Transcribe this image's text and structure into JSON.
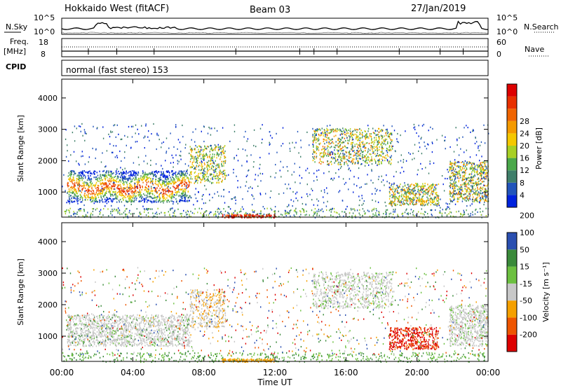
{
  "header": {
    "title": "Hokkaido West (fitACF)",
    "beam": "Beam 03",
    "date": "27/Jan/2019"
  },
  "top_panels": {
    "nsky_label": "N.Sky",
    "nsky_ticks": [
      "10^5",
      "10^0"
    ],
    "nsearch_label": "N.Search",
    "freq_label": "Freq.",
    "freq_unit": "[MHz]",
    "freq_ticks": [
      "18",
      "8"
    ],
    "nave_ticks": [
      "60",
      "0"
    ],
    "nave_label": "Nave",
    "cpid_label": "CPID",
    "cpid_text": "normal (fast stereo) 153"
  },
  "colors": {
    "power_scale": [
      "#0022dd",
      "#2255bb",
      "#3f7f6a",
      "#4aa84a",
      "#a8d025",
      "#f5c800",
      "#f59a00",
      "#f06400",
      "#e83000",
      "#dd0000"
    ],
    "velocity_scale": [
      "#dd0000",
      "#ee5500",
      "#f5a000",
      "#c8c8c8",
      "#6cc040",
      "#3a8a3a",
      "#2a4fb0"
    ]
  },
  "chart_data": [
    {
      "type": "heatmap",
      "name": "power",
      "ylabel": "Slant Range [km]",
      "yticks": [
        1000,
        2000,
        3000,
        4000
      ],
      "ylim": [
        200,
        4600
      ],
      "xlim": [
        0,
        24
      ],
      "colorbar_label": "Power [dB]",
      "colorbar_ticks": [
        "4",
        "8",
        "12",
        "16",
        "20",
        "24",
        "28"
      ],
      "colorbar_range": [
        0,
        32
      ]
    },
    {
      "type": "heatmap",
      "name": "velocity",
      "ylabel": "Slant Range [km]",
      "yticks": [
        1000,
        2000,
        3000,
        4000
      ],
      "ylim": [
        200,
        4600
      ],
      "xlim": [
        0,
        24
      ],
      "colorbar_label": "Velocity [m s⁻¹]",
      "colorbar_ticks": [
        "-200",
        "-100",
        "-50",
        "-15",
        "15",
        "50",
        "100",
        "200"
      ]
    }
  ],
  "xaxis": {
    "ticks": [
      "00:00",
      "04:00",
      "08:00",
      "12:00",
      "16:00",
      "20:00",
      "00:00"
    ],
    "label": "Time UT"
  }
}
